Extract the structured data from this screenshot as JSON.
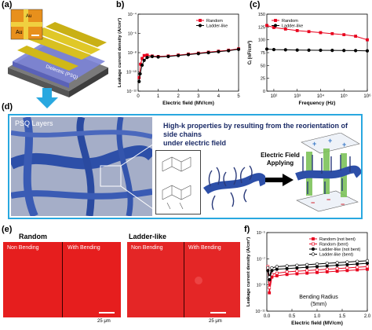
{
  "panel_labels": {
    "a": "(a)",
    "b": "b)",
    "c": "(c)",
    "d": "(d)",
    "e": "(e)",
    "f": "f)"
  },
  "panel_a": {
    "inset_labels": [
      "Au",
      "Au"
    ],
    "dielectric_label": "Dielectric (PSQ)"
  },
  "panel_d": {
    "psq_label": "PSQ Layers",
    "title_line1": "High-k properties by resulting from the  reorientation of side chains",
    "title_line2": "under electric field",
    "arrow_label_line1": "Electric Field",
    "arrow_label_line2": "Applying",
    "plus_sign": "+",
    "minus_sign": "−"
  },
  "panel_e": {
    "random_title": "Random",
    "ladder_title": "Ladder-like",
    "non_bending": "Non Bending",
    "with_bending": "With Bending",
    "scale_label": "25 μm"
  },
  "colors": {
    "random": "#e8001c",
    "ladder": "#000000",
    "frame_blue": "#29a8e0",
    "micrograph_red": "#e61e1e"
  },
  "chart_data": [
    {
      "id": "b",
      "type": "line",
      "xlabel": "Electric field (MV/cm)",
      "ylabel": "Leakage current density (A/cm²)",
      "xlim": [
        0,
        5
      ],
      "ylim_log10": [
        -12,
        -4
      ],
      "x_ticks": [
        "0",
        "1",
        "2",
        "3",
        "4",
        "5"
      ],
      "y_ticks": [
        "10⁻¹²",
        "10⁻¹⁰",
        "10⁻⁸",
        "10⁻⁶",
        "10⁻⁴"
      ],
      "y_tick_exps": [
        -12,
        -10,
        -8,
        -6,
        -4
      ],
      "legend": "top-right",
      "series": [
        {
          "name": "Random",
          "color": "#e8001c",
          "marker": "square",
          "x": [
            0.05,
            0.12,
            0.2,
            0.3,
            0.45,
            0.7,
            1.0,
            1.5,
            2.0,
            2.5,
            3.0,
            3.5,
            4.0,
            4.5,
            5.0
          ],
          "log_y": [
            -10.6,
            -9.2,
            -8.6,
            -8.3,
            -8.25,
            -8.35,
            -8.4,
            -8.35,
            -8.25,
            -8.15,
            -8.05,
            -7.95,
            -7.85,
            -7.75,
            -7.6
          ]
        },
        {
          "name": "Ladder-like",
          "color": "#000000",
          "marker": "circle",
          "x": [
            0.05,
            0.1,
            0.2,
            0.3,
            0.45,
            0.7,
            1.0,
            1.5,
            2.0,
            2.5,
            3.0,
            3.5,
            4.0,
            4.5,
            5.0
          ],
          "log_y": [
            -11.0,
            -10.2,
            -9.3,
            -8.8,
            -8.5,
            -8.4,
            -8.45,
            -8.4,
            -8.3,
            -8.2,
            -8.1,
            -8.0,
            -7.9,
            -7.8,
            -7.65
          ]
        }
      ]
    },
    {
      "id": "c",
      "type": "line",
      "xlabel": "Frequency (Hz)",
      "ylabel": "Cᵢ (nF/cm²)",
      "xlim_log10": [
        1.7,
        6
      ],
      "ylim": [
        0,
        150
      ],
      "x_ticks": [
        "10²",
        "10³",
        "10⁴",
        "10⁵",
        "10⁶"
      ],
      "x_tick_exps": [
        2,
        3,
        4,
        5,
        6
      ],
      "y_ticks": [
        "0",
        "25",
        "50",
        "75",
        "100",
        "125",
        "150"
      ],
      "legend": "top-left",
      "series": [
        {
          "name": "Random",
          "color": "#e8001c",
          "marker": "square",
          "log_x": [
            1.7,
            2.0,
            2.5,
            3.0,
            3.5,
            4.0,
            4.5,
            5.0,
            5.5,
            6.0
          ],
          "y": [
            128,
            124,
            121,
            118,
            116,
            114,
            112,
            110,
            107,
            100
          ]
        },
        {
          "name": "Ladder-like",
          "color": "#000000",
          "marker": "circle",
          "log_x": [
            1.7,
            2.0,
            2.5,
            3.0,
            3.5,
            4.0,
            4.5,
            5.0,
            5.5,
            6.0
          ],
          "y": [
            82,
            81,
            80.5,
            80,
            79.8,
            79.6,
            79.4,
            79.2,
            79,
            78.5
          ]
        }
      ]
    },
    {
      "id": "f",
      "type": "line",
      "xlabel": "Electric field (MV/cm)",
      "ylabel": "Leakage current density (A/cm²)",
      "xlim": [
        0,
        2.0
      ],
      "ylim_log10": [
        -11,
        -5
      ],
      "x_ticks": [
        "0.0",
        "0.5",
        "1.0",
        "1.5",
        "2.0"
      ],
      "y_ticks": [
        "10⁻¹¹",
        "10⁻⁹",
        "10⁻⁷",
        "10⁻⁵"
      ],
      "y_tick_exps": [
        -11,
        -9,
        -7,
        -5
      ],
      "legend": "top-right",
      "annotation_line1": "Bending Radius",
      "annotation_line2": "(5mm)",
      "series": [
        {
          "name": "Random (not bent)",
          "color": "#e8001c",
          "marker": "square",
          "fill": true,
          "x": [
            0.02,
            0.05,
            0.1,
            0.2,
            0.4,
            0.6,
            0.8,
            1.0,
            1.2,
            1.4,
            1.6,
            1.8,
            2.0
          ],
          "log_y": [
            -7.8,
            -9.6,
            -8.4,
            -8.3,
            -8.2,
            -8.15,
            -8.1,
            -8.05,
            -8.0,
            -7.95,
            -7.9,
            -7.85,
            -7.8
          ]
        },
        {
          "name": "Random (bent)",
          "color": "#e8001c",
          "marker": "square",
          "fill": false,
          "x": [
            0.02,
            0.05,
            0.1,
            0.2,
            0.4,
            0.6,
            0.8,
            1.0,
            1.2,
            1.4,
            1.6,
            1.8,
            2.0
          ],
          "log_y": [
            -7.6,
            -9.2,
            -8.2,
            -8.1,
            -8.0,
            -7.95,
            -7.9,
            -7.85,
            -7.8,
            -7.75,
            -7.7,
            -7.65,
            -7.6
          ]
        },
        {
          "name": "Ladder-like (not bent)",
          "color": "#000000",
          "marker": "circle",
          "fill": true,
          "x": [
            0.02,
            0.05,
            0.1,
            0.2,
            0.4,
            0.6,
            0.8,
            1.0,
            1.2,
            1.4,
            1.6,
            1.8,
            2.0
          ],
          "log_y": [
            -7.9,
            -8.6,
            -7.9,
            -7.8,
            -7.75,
            -7.7,
            -7.65,
            -7.6,
            -7.55,
            -7.5,
            -7.45,
            -7.4,
            -7.35
          ]
        },
        {
          "name": "Ladder-like (bent)",
          "color": "#000000",
          "marker": "circle",
          "fill": false,
          "x": [
            0.02,
            0.05,
            0.1,
            0.2,
            0.4,
            0.6,
            0.8,
            1.0,
            1.2,
            1.4,
            1.6,
            1.8,
            2.0
          ],
          "log_y": [
            -7.7,
            -8.4,
            -7.7,
            -7.6,
            -7.55,
            -7.5,
            -7.45,
            -7.4,
            -7.35,
            -7.3,
            -7.25,
            -7.2,
            -7.15
          ]
        }
      ]
    }
  ]
}
